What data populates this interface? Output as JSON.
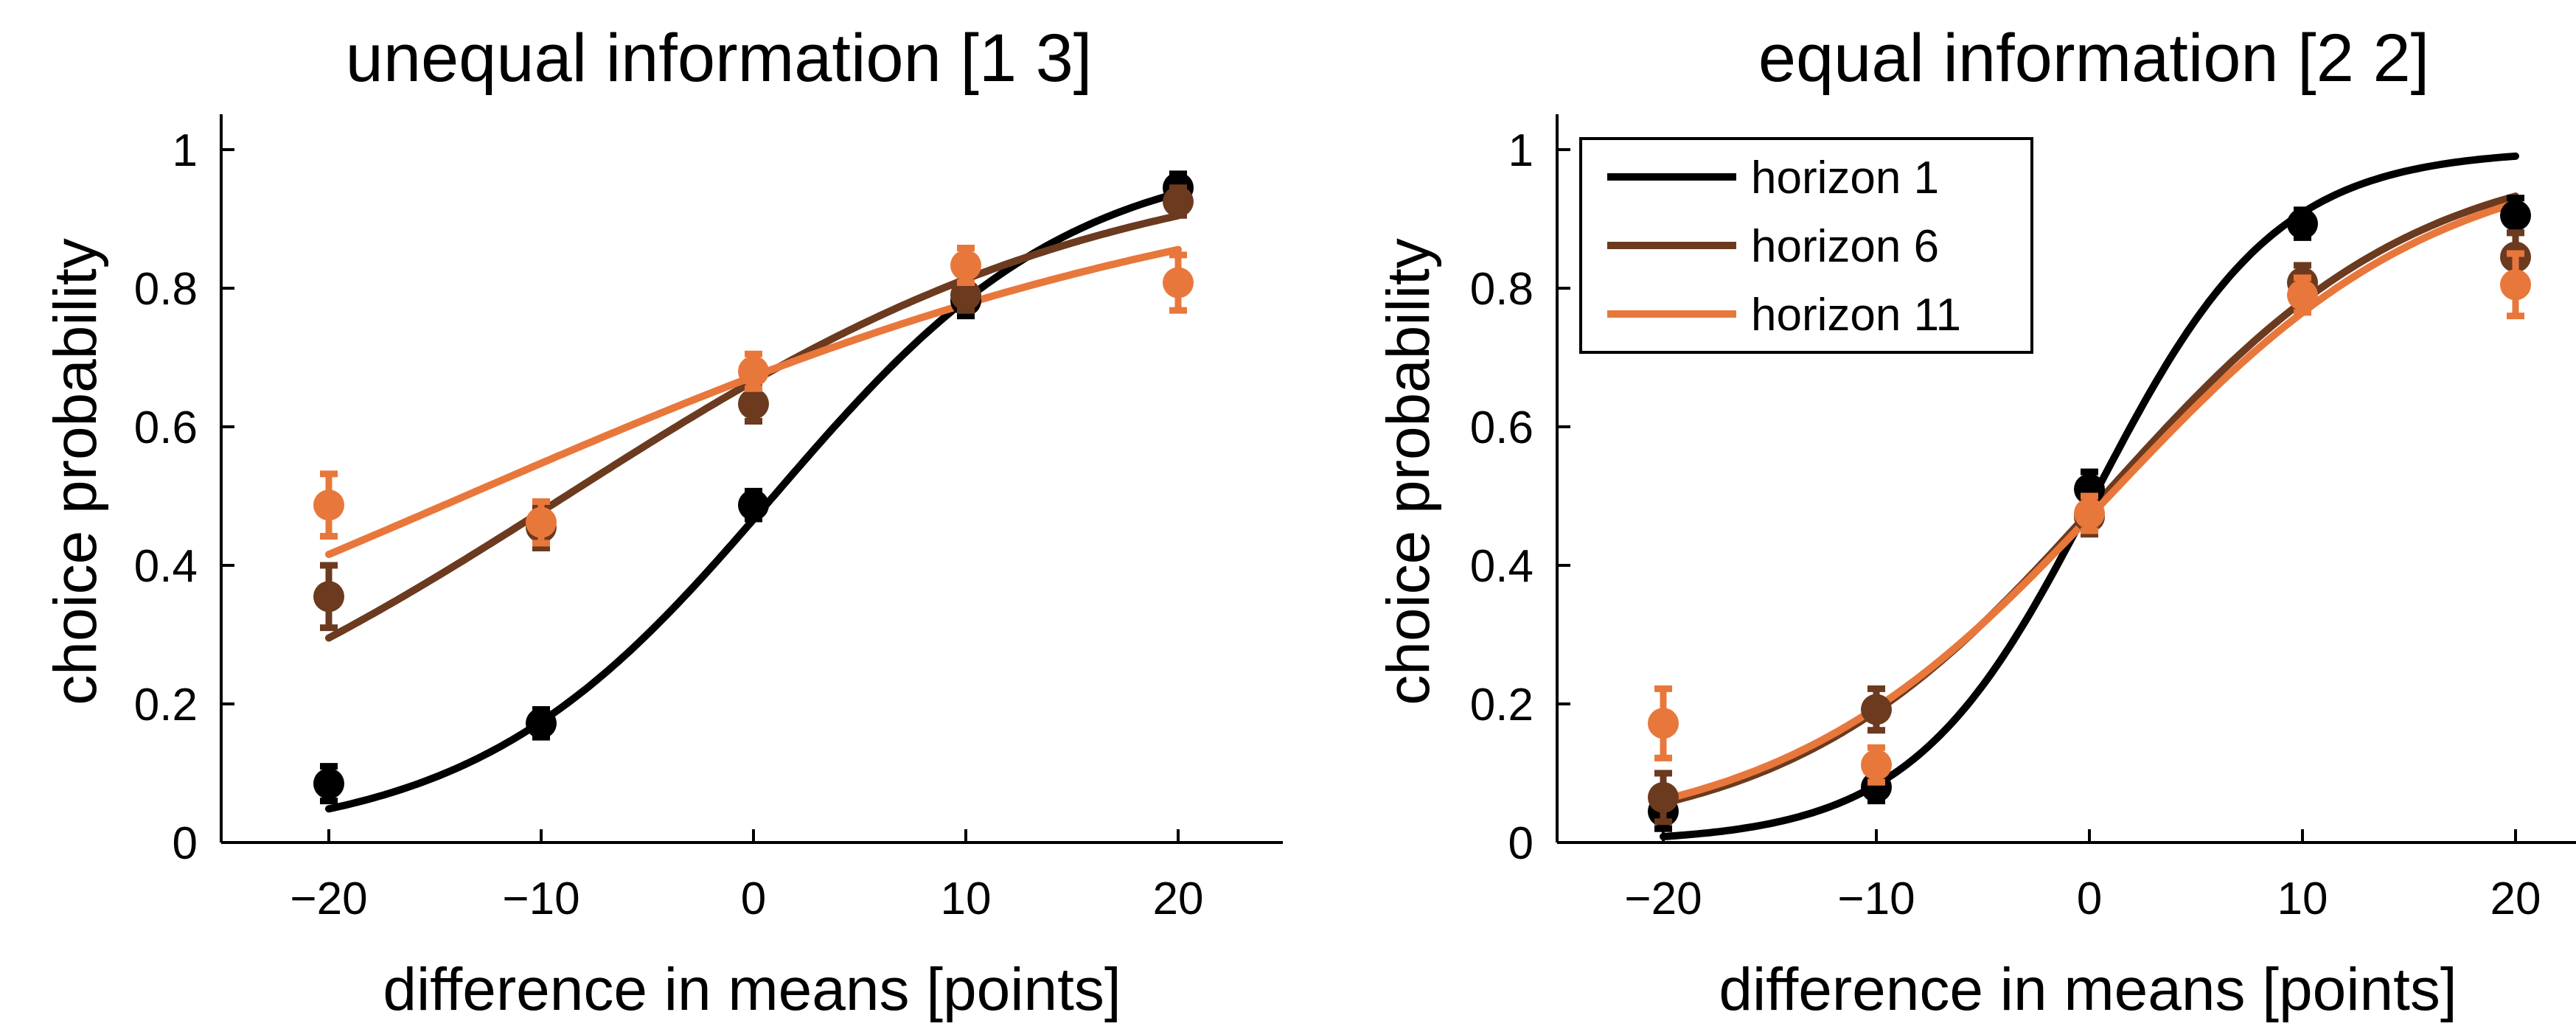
{
  "colors": {
    "horizon_1": "#000000",
    "horizon_6": "#6b3a1f",
    "horizon_11": "#e8773c"
  },
  "chart_data": [
    {
      "type": "line",
      "title": "unequal information [1 3]",
      "xlabel": "difference in means [points]",
      "ylabel": "choice probability",
      "xlim": [
        -25,
        25
      ],
      "ylim": [
        0,
        1.05
      ],
      "xticks": [
        -20,
        -10,
        0,
        10,
        20
      ],
      "xtick_labels": [
        "−20",
        "−10",
        "0",
        "10",
        "20"
      ],
      "yticks": [
        0,
        0.2,
        0.4,
        0.6,
        0.8,
        1
      ],
      "ytick_labels": [
        "0",
        "0.2",
        "0.4",
        "0.6",
        "0.8",
        "1"
      ],
      "grid": false,
      "x": [
        -20,
        -10,
        0,
        10,
        20
      ],
      "series": [
        {
          "name": "horizon 1",
          "color": "#000000",
          "points": [
            0.085,
            0.172,
            0.487,
            0.782,
            0.945
          ],
          "errors": [
            0.025,
            0.02,
            0.02,
            0.022,
            0.02
          ],
          "fit": {
            "a": 0.142,
            "b": -0.135
          }
        },
        {
          "name": "horizon 6",
          "color": "#6b3a1f",
          "points": [
            0.355,
            0.455,
            0.633,
            0.79,
            0.925
          ],
          "errors": [
            0.045,
            0.03,
            0.025,
            0.022,
            0.02
          ],
          "fit": {
            "a": 0.078,
            "b": 0.69
          }
        },
        {
          "name": "horizon 11",
          "color": "#e8773c",
          "points": [
            0.487,
            0.462,
            0.68,
            0.833,
            0.808
          ],
          "errors": [
            0.045,
            0.03,
            0.025,
            0.025,
            0.04
          ],
          "fit": {
            "a": 0.053,
            "b": 0.72
          }
        }
      ]
    },
    {
      "type": "line",
      "title": "equal information [2 2]",
      "xlabel": "difference in means [points]",
      "ylabel": "choice probability",
      "xlim": [
        -25,
        25
      ],
      "ylim": [
        0,
        1.05
      ],
      "xticks": [
        -20,
        -10,
        0,
        10,
        20
      ],
      "xtick_labels": [
        "−20",
        "−10",
        "0",
        "10",
        "20"
      ],
      "yticks": [
        0,
        0.2,
        0.4,
        0.6,
        0.8,
        1
      ],
      "ytick_labels": [
        "0",
        "0.2",
        "0.4",
        "0.6",
        "0.8",
        "1"
      ],
      "grid": false,
      "legend": {
        "position": "top-left",
        "entries": [
          "horizon 1",
          "horizon 6",
          "horizon 11"
        ]
      },
      "x": [
        -20,
        -10,
        0,
        10,
        20
      ],
      "series": [
        {
          "name": "horizon 1",
          "color": "#000000",
          "points": [
            0.045,
            0.08,
            0.51,
            0.893,
            0.905
          ],
          "errors": [
            0.025,
            0.02,
            0.025,
            0.02,
            0.025
          ],
          "fit": {
            "a": 0.235,
            "b": -0.05
          }
        },
        {
          "name": "horizon 6",
          "color": "#6b3a1f",
          "points": [
            0.065,
            0.192,
            0.47,
            0.808,
            0.845
          ],
          "errors": [
            0.035,
            0.03,
            0.025,
            0.025,
            0.035
          ],
          "fit": {
            "a": 0.136,
            "b": -0.09
          }
        },
        {
          "name": "horizon 11",
          "color": "#e8773c",
          "points": [
            0.172,
            0.112,
            0.475,
            0.79,
            0.805
          ],
          "errors": [
            0.05,
            0.025,
            0.025,
            0.025,
            0.045
          ],
          "fit": {
            "a": 0.13,
            "b": -0.12
          }
        }
      ]
    }
  ]
}
